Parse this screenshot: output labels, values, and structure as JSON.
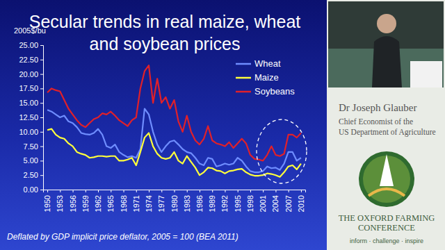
{
  "chart_data": {
    "type": "line",
    "title": "Secular trends in real maize, wheat and soybean prices",
    "ylabel": "2005$/bu",
    "footnote": "Deflated by GDP implicit price deflator, 2005 = 100 (BEA 2011)",
    "x": [
      1950,
      1951,
      1952,
      1953,
      1954,
      1955,
      1956,
      1957,
      1958,
      1959,
      1960,
      1961,
      1962,
      1963,
      1964,
      1965,
      1966,
      1967,
      1968,
      1969,
      1970,
      1971,
      1972,
      1973,
      1974,
      1975,
      1976,
      1977,
      1978,
      1979,
      1980,
      1981,
      1982,
      1983,
      1984,
      1985,
      1986,
      1987,
      1988,
      1989,
      1990,
      1991,
      1992,
      1993,
      1994,
      1995,
      1996,
      1997,
      1998,
      1999,
      2000,
      2001,
      2002,
      2003,
      2004,
      2005,
      2006,
      2007,
      2008,
      2009,
      2010
    ],
    "series": [
      {
        "name": "Wheat",
        "color": "#6f8dff",
        "values": [
          13.8,
          13.5,
          13.0,
          12.5,
          12.8,
          11.8,
          11.5,
          10.8,
          9.8,
          9.6,
          9.5,
          9.8,
          10.5,
          9.5,
          7.5,
          7.2,
          7.8,
          6.5,
          6.0,
          5.6,
          5.8,
          5.5,
          7.0,
          14.0,
          13.0,
          10.0,
          7.8,
          6.5,
          7.5,
          8.3,
          8.5,
          7.8,
          7.0,
          6.5,
          6.3,
          5.5,
          4.5,
          4.2,
          5.5,
          5.3,
          4.0,
          4.2,
          4.5,
          4.3,
          4.5,
          5.5,
          5.0,
          4.0,
          3.2,
          3.0,
          3.0,
          3.2,
          4.0,
          3.7,
          3.8,
          3.4,
          4.5,
          6.5,
          6.5,
          5.0,
          5.5
        ]
      },
      {
        "name": "Maize",
        "color": "#ffff3c",
        "values": [
          10.3,
          10.5,
          9.5,
          9.0,
          8.8,
          8.0,
          7.5,
          6.5,
          6.2,
          6.0,
          5.5,
          5.6,
          5.8,
          5.8,
          5.7,
          5.8,
          5.8,
          5.0,
          5.0,
          5.2,
          5.5,
          4.2,
          6.5,
          9.0,
          9.8,
          7.5,
          6.2,
          5.5,
          5.3,
          5.5,
          6.5,
          5.0,
          4.5,
          5.8,
          4.8,
          3.8,
          2.5,
          3.0,
          3.8,
          3.7,
          3.3,
          3.2,
          2.8,
          3.2,
          3.3,
          3.5,
          3.6,
          3.0,
          2.6,
          2.4,
          2.4,
          2.5,
          2.8,
          2.7,
          2.5,
          2.2,
          3.0,
          4.0,
          4.2,
          3.5,
          4.5
        ]
      },
      {
        "name": "Soybeans",
        "color": "#e0202a",
        "values": [
          16.8,
          17.5,
          17.2,
          17.0,
          15.5,
          14.0,
          13.0,
          12.0,
          11.2,
          10.8,
          11.5,
          12.2,
          12.5,
          13.2,
          13.0,
          13.5,
          12.8,
          12.0,
          11.5,
          11.0,
          12.0,
          12.5,
          17.5,
          20.5,
          21.5,
          15.0,
          19.2,
          15.0,
          16.0,
          14.0,
          15.5,
          11.8,
          10.0,
          12.8,
          10.0,
          8.5,
          7.8,
          8.8,
          11.0,
          8.5,
          8.0,
          7.8,
          7.5,
          8.2,
          7.2,
          8.0,
          8.8,
          8.0,
          6.0,
          5.3,
          5.2,
          5.0,
          6.0,
          7.5,
          6.0,
          5.8,
          6.2,
          9.5,
          9.5,
          9.0,
          9.8
        ]
      }
    ],
    "xlim": [
      1949,
      2011
    ],
    "xticks": [
      1950,
      1953,
      1956,
      1959,
      1962,
      1965,
      1968,
      1971,
      1974,
      1977,
      1980,
      1983,
      1986,
      1989,
      1992,
      1995,
      1998,
      2001,
      2004,
      2007,
      2010
    ],
    "ylim": [
      0,
      25
    ],
    "yticks": [
      {
        "value": 0,
        "label": "0.00"
      },
      {
        "value": 2.5,
        "label": "2.50"
      },
      {
        "value": 5,
        "label": "5.00"
      },
      {
        "value": 7.5,
        "label": "7.50"
      },
      {
        "value": 10,
        "label": "10.00"
      },
      {
        "value": 12.5,
        "label": "12.50"
      },
      {
        "value": 15,
        "label": "15.00"
      },
      {
        "value": 17.5,
        "label": "17.50"
      },
      {
        "value": 20,
        "label": "20.00"
      },
      {
        "value": 22.5,
        "label": "22.50"
      },
      {
        "value": 25,
        "label": "25.00"
      }
    ],
    "grid": false,
    "legend": "upper right"
  },
  "speaker": {
    "name": "Dr Joseph Glauber",
    "title_lines": [
      "Chief Economist of the",
      "US Department of Agriculture"
    ]
  },
  "logo": {
    "lines": [
      "THE OXFORD FARMING",
      "CONFERENCE"
    ],
    "tagline": "inform · challenge · inspire"
  }
}
